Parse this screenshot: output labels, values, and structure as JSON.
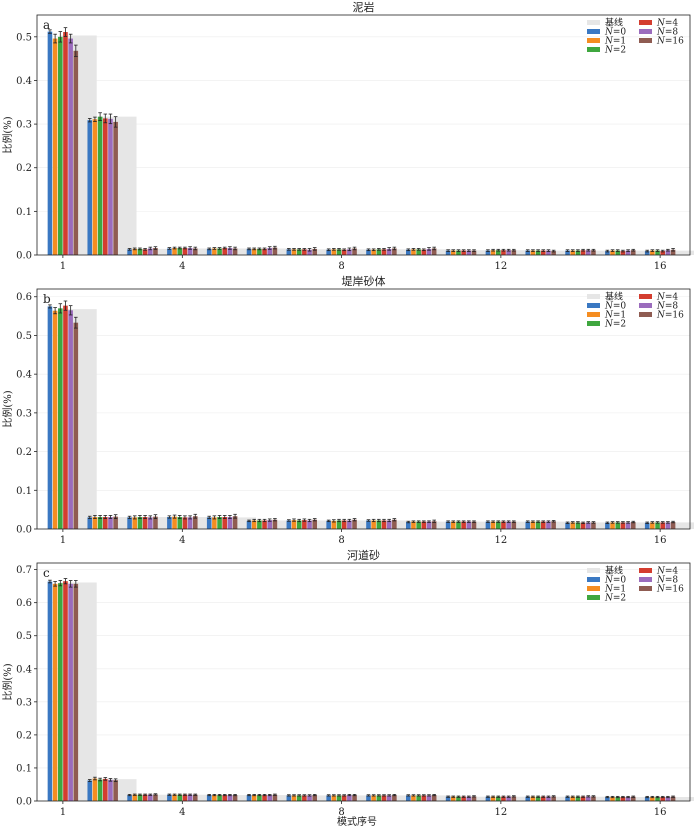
{
  "figure": {
    "xlabel": "模式序号",
    "legend_labels": [
      "基线",
      "N=0",
      "N=1",
      "N=2",
      "N=4",
      "N=8",
      "N=16"
    ]
  },
  "colors": {
    "baseline": "#e6e6e6",
    "series": [
      "#3a78c2",
      "#f58d21",
      "#3fa73f",
      "#d43d2f",
      "#9b6cbd",
      "#8f5c52"
    ]
  },
  "chart_data": [
    {
      "type": "bar",
      "panel_tag": "a",
      "title": "泥岩",
      "ylabel": "比例(%)",
      "ylim": [
        0,
        0.55
      ],
      "yticks": [
        0.0,
        0.1,
        0.2,
        0.3,
        0.4,
        0.5
      ],
      "xticks": [
        1,
        4,
        8,
        12,
        16
      ],
      "grid": "y",
      "legend_position": "top-right",
      "categories": [
        1,
        2,
        3,
        4,
        5,
        6,
        7,
        8,
        9,
        10,
        11,
        12,
        13,
        14,
        15,
        16
      ],
      "baseline": {
        "name": "基线",
        "values": [
          0.503,
          0.317,
          0.014,
          0.015,
          0.015,
          0.015,
          0.013,
          0.013,
          0.013,
          0.013,
          0.011,
          0.011,
          0.01,
          0.01,
          0.01,
          0.01
        ]
      },
      "series": [
        {
          "name": "N=0",
          "values": [
            0.512,
            0.309,
            0.013,
            0.015,
            0.014,
            0.014,
            0.013,
            0.012,
            0.012,
            0.012,
            0.01,
            0.01,
            0.01,
            0.01,
            0.009,
            0.009
          ],
          "errors": [
            0.004,
            0.004,
            0.002,
            0.002,
            0.002,
            0.002,
            0.002,
            0.002,
            0.002,
            0.002,
            0.002,
            0.002,
            0.002,
            0.002,
            0.002,
            0.002
          ]
        },
        {
          "name": "N=1",
          "values": [
            0.496,
            0.311,
            0.014,
            0.016,
            0.015,
            0.014,
            0.013,
            0.013,
            0.012,
            0.013,
            0.01,
            0.011,
            0.01,
            0.01,
            0.01,
            0.01
          ],
          "errors": [
            0.01,
            0.005,
            0.002,
            0.002,
            0.002,
            0.002,
            0.002,
            0.002,
            0.002,
            0.002,
            0.002,
            0.002,
            0.002,
            0.002,
            0.002,
            0.002
          ]
        },
        {
          "name": "N=2",
          "values": [
            0.5,
            0.317,
            0.014,
            0.016,
            0.015,
            0.014,
            0.013,
            0.013,
            0.013,
            0.013,
            0.01,
            0.011,
            0.01,
            0.01,
            0.01,
            0.01
          ],
          "errors": [
            0.012,
            0.009,
            0.002,
            0.002,
            0.002,
            0.002,
            0.002,
            0.002,
            0.002,
            0.002,
            0.002,
            0.002,
            0.002,
            0.002,
            0.002,
            0.002
          ]
        },
        {
          "name": "N=4",
          "values": [
            0.511,
            0.313,
            0.013,
            0.016,
            0.016,
            0.014,
            0.013,
            0.012,
            0.013,
            0.012,
            0.01,
            0.011,
            0.01,
            0.011,
            0.009,
            0.009
          ],
          "errors": [
            0.01,
            0.01,
            0.002,
            0.002,
            0.002,
            0.002,
            0.002,
            0.002,
            0.002,
            0.002,
            0.002,
            0.002,
            0.002,
            0.002,
            0.002,
            0.002
          ]
        },
        {
          "name": "N=8",
          "values": [
            0.496,
            0.312,
            0.015,
            0.016,
            0.016,
            0.016,
            0.012,
            0.013,
            0.014,
            0.014,
            0.01,
            0.011,
            0.01,
            0.011,
            0.01,
            0.011
          ],
          "errors": [
            0.01,
            0.011,
            0.003,
            0.003,
            0.003,
            0.003,
            0.003,
            0.003,
            0.003,
            0.003,
            0.002,
            0.002,
            0.002,
            0.002,
            0.002,
            0.002
          ]
        },
        {
          "name": "N=16",
          "values": [
            0.468,
            0.305,
            0.016,
            0.015,
            0.015,
            0.017,
            0.014,
            0.015,
            0.015,
            0.015,
            0.01,
            0.011,
            0.009,
            0.011,
            0.011,
            0.012
          ],
          "errors": [
            0.013,
            0.012,
            0.003,
            0.003,
            0.003,
            0.003,
            0.003,
            0.003,
            0.003,
            0.003,
            0.002,
            0.002,
            0.002,
            0.002,
            0.002,
            0.003
          ]
        }
      ]
    },
    {
      "type": "bar",
      "panel_tag": "b",
      "title": "堤岸砂体",
      "ylabel": "比例(%)",
      "ylim": [
        0,
        0.62
      ],
      "yticks": [
        0.0,
        0.1,
        0.2,
        0.3,
        0.4,
        0.5,
        0.6
      ],
      "xticks": [
        1,
        4,
        8,
        12,
        16
      ],
      "grid": "y",
      "legend_position": "top-right",
      "categories": [
        1,
        2,
        3,
        4,
        5,
        6,
        7,
        8,
        9,
        10,
        11,
        12,
        13,
        14,
        15,
        16
      ],
      "baseline": {
        "name": "基线",
        "values": [
          0.568,
          0.031,
          0.031,
          0.031,
          0.03,
          0.022,
          0.022,
          0.022,
          0.022,
          0.019,
          0.019,
          0.019,
          0.019,
          0.017,
          0.017,
          0.017
        ]
      },
      "series": [
        {
          "name": "N=0",
          "values": [
            0.575,
            0.03,
            0.03,
            0.031,
            0.03,
            0.021,
            0.022,
            0.021,
            0.022,
            0.018,
            0.019,
            0.019,
            0.019,
            0.016,
            0.016,
            0.016
          ],
          "errors": [
            0.004,
            0.003,
            0.003,
            0.003,
            0.003,
            0.002,
            0.002,
            0.002,
            0.002,
            0.002,
            0.002,
            0.002,
            0.002,
            0.002,
            0.002,
            0.002
          ]
        },
        {
          "name": "N=1",
          "values": [
            0.564,
            0.031,
            0.03,
            0.032,
            0.03,
            0.022,
            0.023,
            0.021,
            0.022,
            0.019,
            0.019,
            0.019,
            0.019,
            0.017,
            0.017,
            0.017
          ],
          "errors": [
            0.008,
            0.004,
            0.004,
            0.004,
            0.004,
            0.003,
            0.003,
            0.003,
            0.003,
            0.002,
            0.002,
            0.002,
            0.002,
            0.002,
            0.002,
            0.002
          ]
        },
        {
          "name": "N=2",
          "values": [
            0.57,
            0.031,
            0.031,
            0.031,
            0.031,
            0.022,
            0.022,
            0.022,
            0.022,
            0.019,
            0.019,
            0.019,
            0.019,
            0.017,
            0.017,
            0.017
          ],
          "errors": [
            0.012,
            0.004,
            0.004,
            0.004,
            0.004,
            0.003,
            0.003,
            0.003,
            0.003,
            0.002,
            0.002,
            0.002,
            0.002,
            0.002,
            0.002,
            0.002
          ]
        },
        {
          "name": "N=4",
          "values": [
            0.577,
            0.031,
            0.031,
            0.03,
            0.031,
            0.022,
            0.023,
            0.022,
            0.022,
            0.019,
            0.019,
            0.019,
            0.019,
            0.016,
            0.017,
            0.017
          ],
          "errors": [
            0.012,
            0.004,
            0.004,
            0.004,
            0.004,
            0.003,
            0.003,
            0.003,
            0.003,
            0.002,
            0.002,
            0.002,
            0.002,
            0.002,
            0.002,
            0.002
          ]
        },
        {
          "name": "N=8",
          "values": [
            0.565,
            0.031,
            0.03,
            0.03,
            0.031,
            0.023,
            0.022,
            0.022,
            0.022,
            0.019,
            0.019,
            0.019,
            0.019,
            0.017,
            0.017,
            0.017
          ],
          "errors": [
            0.012,
            0.004,
            0.004,
            0.004,
            0.004,
            0.003,
            0.003,
            0.003,
            0.003,
            0.002,
            0.002,
            0.002,
            0.002,
            0.002,
            0.002,
            0.002
          ]
        },
        {
          "name": "N=16",
          "values": [
            0.533,
            0.032,
            0.032,
            0.033,
            0.033,
            0.024,
            0.024,
            0.024,
            0.024,
            0.02,
            0.019,
            0.019,
            0.02,
            0.017,
            0.018,
            0.018
          ],
          "errors": [
            0.014,
            0.005,
            0.005,
            0.005,
            0.005,
            0.003,
            0.003,
            0.003,
            0.003,
            0.003,
            0.002,
            0.002,
            0.002,
            0.002,
            0.002,
            0.002
          ]
        }
      ]
    },
    {
      "type": "bar",
      "panel_tag": "c",
      "title": "河道砂",
      "ylabel": "比例(%)",
      "ylim": [
        0,
        0.72
      ],
      "yticks": [
        0.0,
        0.1,
        0.2,
        0.3,
        0.4,
        0.5,
        0.6,
        0.7
      ],
      "xticks": [
        1,
        4,
        8,
        12,
        16
      ],
      "grid": "y",
      "legend_position": "top-right",
      "categories": [
        1,
        2,
        3,
        4,
        5,
        6,
        7,
        8,
        9,
        10,
        11,
        12,
        13,
        14,
        15,
        16
      ],
      "baseline": {
        "name": "基线",
        "values": [
          0.661,
          0.066,
          0.019,
          0.019,
          0.018,
          0.018,
          0.017,
          0.017,
          0.017,
          0.017,
          0.013,
          0.013,
          0.013,
          0.013,
          0.012,
          0.012
        ]
      },
      "series": [
        {
          "name": "N=0",
          "values": [
            0.664,
            0.062,
            0.018,
            0.019,
            0.018,
            0.018,
            0.017,
            0.017,
            0.017,
            0.017,
            0.013,
            0.013,
            0.013,
            0.013,
            0.012,
            0.012
          ],
          "errors": [
            0.004,
            0.003,
            0.002,
            0.002,
            0.002,
            0.002,
            0.002,
            0.002,
            0.002,
            0.002,
            0.002,
            0.002,
            0.002,
            0.002,
            0.002,
            0.002
          ]
        },
        {
          "name": "N=1",
          "values": [
            0.657,
            0.068,
            0.019,
            0.019,
            0.018,
            0.018,
            0.017,
            0.017,
            0.017,
            0.017,
            0.013,
            0.013,
            0.013,
            0.013,
            0.012,
            0.012
          ],
          "errors": [
            0.007,
            0.004,
            0.002,
            0.002,
            0.002,
            0.002,
            0.002,
            0.002,
            0.002,
            0.002,
            0.002,
            0.002,
            0.002,
            0.002,
            0.002,
            0.002
          ]
        },
        {
          "name": "N=2",
          "values": [
            0.659,
            0.065,
            0.019,
            0.019,
            0.018,
            0.018,
            0.017,
            0.017,
            0.017,
            0.017,
            0.013,
            0.013,
            0.013,
            0.013,
            0.012,
            0.012
          ],
          "errors": [
            0.008,
            0.004,
            0.002,
            0.002,
            0.002,
            0.002,
            0.002,
            0.002,
            0.002,
            0.002,
            0.002,
            0.002,
            0.002,
            0.002,
            0.002,
            0.002
          ]
        },
        {
          "name": "N=4",
          "values": [
            0.665,
            0.067,
            0.019,
            0.019,
            0.018,
            0.018,
            0.017,
            0.017,
            0.017,
            0.017,
            0.013,
            0.013,
            0.013,
            0.013,
            0.012,
            0.012
          ],
          "errors": [
            0.008,
            0.004,
            0.002,
            0.002,
            0.002,
            0.002,
            0.002,
            0.002,
            0.002,
            0.002,
            0.002,
            0.002,
            0.002,
            0.002,
            0.002,
            0.002
          ]
        },
        {
          "name": "N=8",
          "values": [
            0.657,
            0.064,
            0.019,
            0.019,
            0.018,
            0.018,
            0.017,
            0.018,
            0.017,
            0.017,
            0.013,
            0.013,
            0.013,
            0.014,
            0.012,
            0.012
          ],
          "errors": [
            0.01,
            0.004,
            0.002,
            0.002,
            0.002,
            0.002,
            0.002,
            0.002,
            0.002,
            0.002,
            0.002,
            0.002,
            0.002,
            0.002,
            0.002,
            0.002
          ]
        },
        {
          "name": "N=16",
          "values": [
            0.657,
            0.063,
            0.02,
            0.019,
            0.018,
            0.019,
            0.018,
            0.018,
            0.018,
            0.018,
            0.014,
            0.014,
            0.014,
            0.014,
            0.013,
            0.013
          ],
          "errors": [
            0.01,
            0.004,
            0.002,
            0.002,
            0.002,
            0.002,
            0.002,
            0.002,
            0.002,
            0.002,
            0.002,
            0.002,
            0.002,
            0.002,
            0.002,
            0.002
          ]
        }
      ]
    }
  ]
}
